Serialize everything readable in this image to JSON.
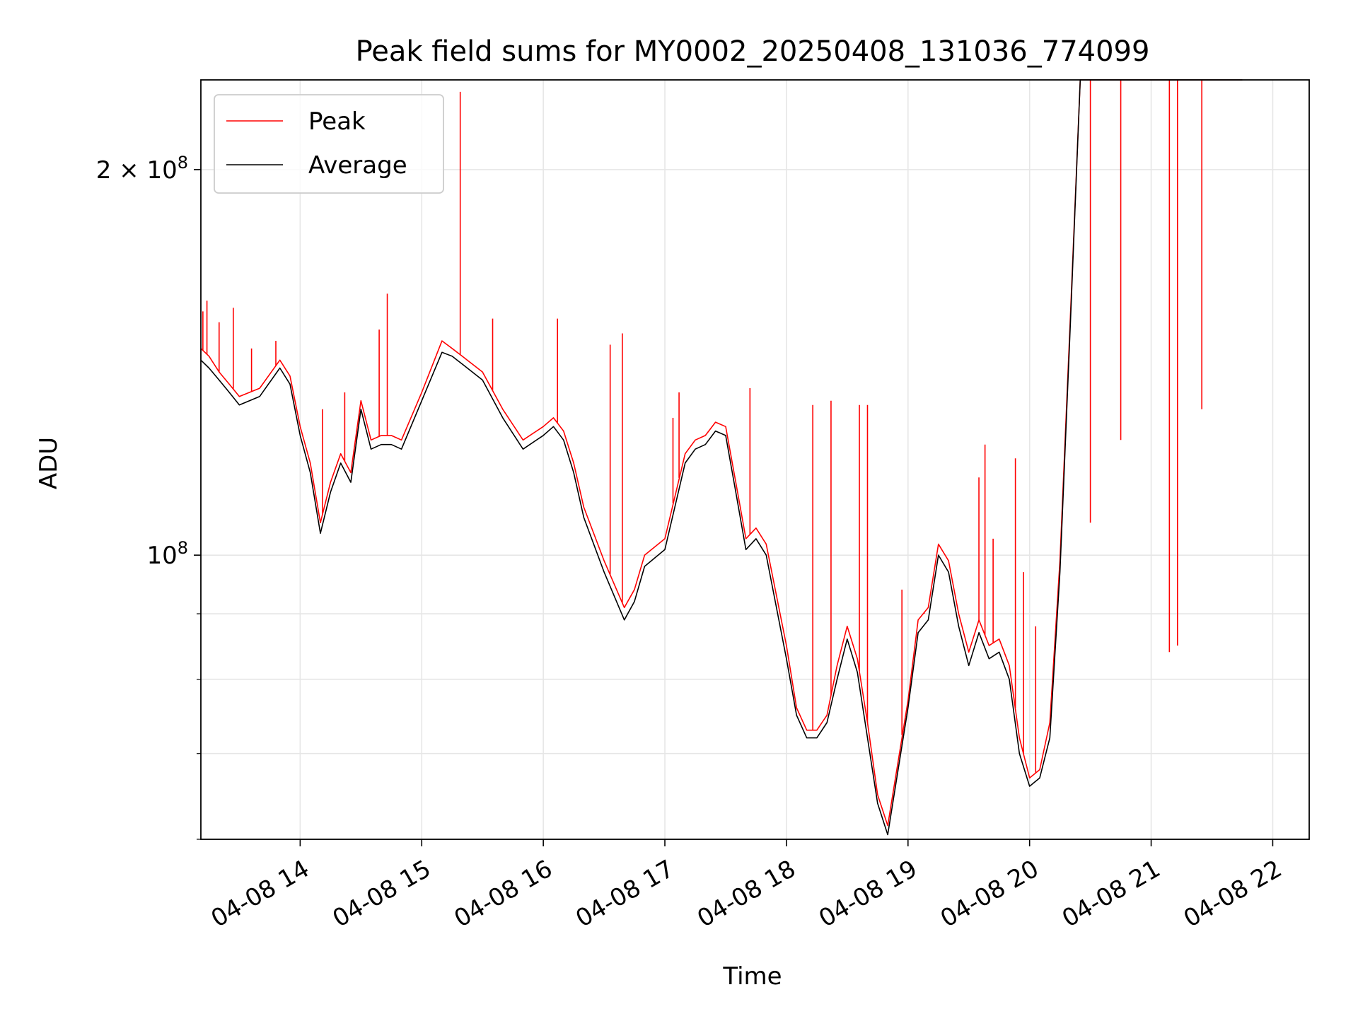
{
  "chart_data": {
    "type": "line",
    "title": "Peak field sums for MY0002_20250408_131036_774099",
    "xlabel": "Time",
    "ylabel": "ADU",
    "y_scale": "log",
    "ylim": [
      60000000,
      235000000
    ],
    "xlim": [
      "2025-04-08 13:11",
      "2025-04-08 22:18"
    ],
    "grid": true,
    "legend_position": "top-left",
    "x_ticks": [
      {
        "x": "2025-04-08 14:00",
        "label": "04-08 14"
      },
      {
        "x": "2025-04-08 15:00",
        "label": "04-08 15"
      },
      {
        "x": "2025-04-08 16:00",
        "label": "04-08 16"
      },
      {
        "x": "2025-04-08 17:00",
        "label": "04-08 17"
      },
      {
        "x": "2025-04-08 18:00",
        "label": "04-08 18"
      },
      {
        "x": "2025-04-08 19:00",
        "label": "04-08 19"
      },
      {
        "x": "2025-04-08 20:00",
        "label": "04-08 20"
      },
      {
        "x": "2025-04-08 21:00",
        "label": "04-08 21"
      },
      {
        "x": "2025-04-08 22:00",
        "label": "04-08 22"
      }
    ],
    "y_major_ticks": [
      {
        "y": 100000000,
        "label_base": "10",
        "label_exp": "8",
        "label_mult": ""
      },
      {
        "y": 200000000,
        "label_base": "10",
        "label_exp": "8",
        "label_mult": "2 × "
      }
    ],
    "y_minor_ticks": [
      60000000,
      70000000,
      80000000,
      90000000
    ],
    "x_date_start": "2025-04-08",
    "series": [
      {
        "name": "Average",
        "color": "#000000",
        "x": [
          "13:11",
          "13:15",
          "13:20",
          "13:25",
          "13:30",
          "13:40",
          "13:50",
          "13:55",
          "14:00",
          "14:05",
          "14:10",
          "14:15",
          "14:20",
          "14:25",
          "14:30",
          "14:35",
          "14:40",
          "14:45",
          "14:50",
          "15:00",
          "15:10",
          "15:15",
          "15:20",
          "15:30",
          "15:40",
          "15:50",
          "16:00",
          "16:05",
          "16:10",
          "16:15",
          "16:20",
          "16:30",
          "16:40",
          "16:45",
          "16:50",
          "17:00",
          "17:10",
          "17:15",
          "17:20",
          "17:25",
          "17:30",
          "17:35",
          "17:40",
          "17:45",
          "17:50",
          "18:00",
          "18:05",
          "18:10",
          "18:15",
          "18:20",
          "18:25",
          "18:30",
          "18:35",
          "18:40",
          "18:45",
          "18:50",
          "19:00",
          "19:05",
          "19:10",
          "19:15",
          "19:20",
          "19:25",
          "19:30",
          "19:35",
          "19:40",
          "19:45",
          "19:50",
          "19:55",
          "20:00",
          "20:05",
          "20:10",
          "20:15",
          "20:20",
          "20:25",
          "20:30",
          "20:35",
          "20:40",
          "20:45",
          "20:50",
          "20:55",
          "21:00",
          "21:05",
          "21:10",
          "21:15",
          "21:20",
          "21:25",
          "21:30",
          "21:35",
          "21:40",
          "21:45"
        ],
        "y": [
          142000000,
          140000000,
          137000000,
          134000000,
          131000000,
          133000000,
          140000000,
          136000000,
          124000000,
          116000000,
          104000000,
          112000000,
          118000000,
          114000000,
          130000000,
          121000000,
          122000000,
          122000000,
          121000000,
          132000000,
          144000000,
          143000000,
          141000000,
          137000000,
          128000000,
          121000000,
          124000000,
          126000000,
          123000000,
          116000000,
          107000000,
          97000000,
          89000000,
          92000000,
          98000000,
          101000000,
          118000000,
          121000000,
          122000000,
          125000000,
          124000000,
          112000000,
          101000000,
          103000000,
          100000000,
          83000000,
          75000000,
          72000000,
          72000000,
          74000000,
          80000000,
          86000000,
          81000000,
          72000000,
          64000000,
          60500000,
          76000000,
          87000000,
          89000000,
          100000000,
          97000000,
          88000000,
          82000000,
          87000000,
          83000000,
          84000000,
          80000000,
          70000000,
          66000000,
          67000000,
          72000000,
          97000000,
          150000000,
          235000000,
          235000000,
          235000000,
          235000000,
          235000000,
          235000000,
          235000000,
          235000000,
          235000000,
          235000000,
          235000000,
          235000000,
          235000000,
          235000000,
          235000000,
          235000000,
          235000000
        ]
      },
      {
        "name": "Peak",
        "color": "#ff0000",
        "x": [
          "13:11",
          "13:15",
          "13:20",
          "13:25",
          "13:30",
          "13:40",
          "13:50",
          "13:55",
          "14:00",
          "14:05",
          "14:10",
          "14:15",
          "14:20",
          "14:25",
          "14:30",
          "14:35",
          "14:40",
          "14:45",
          "14:50",
          "15:00",
          "15:10",
          "15:15",
          "15:20",
          "15:30",
          "15:40",
          "15:50",
          "16:00",
          "16:05",
          "16:10",
          "16:15",
          "16:20",
          "16:30",
          "16:40",
          "16:45",
          "16:50",
          "17:00",
          "17:10",
          "17:15",
          "17:20",
          "17:25",
          "17:30",
          "17:35",
          "17:40",
          "17:45",
          "17:50",
          "18:00",
          "18:05",
          "18:10",
          "18:15",
          "18:20",
          "18:25",
          "18:30",
          "18:35",
          "18:40",
          "18:45",
          "18:50",
          "19:00",
          "19:05",
          "19:10",
          "19:15",
          "19:20",
          "19:25",
          "19:30",
          "19:35",
          "19:40",
          "19:45",
          "19:50",
          "19:55",
          "20:00",
          "20:05",
          "20:10",
          "20:15",
          "20:20",
          "20:25",
          "20:30",
          "20:35",
          "20:40",
          "20:45",
          "20:50",
          "20:55",
          "21:00",
          "21:05",
          "21:10",
          "21:15",
          "21:20",
          "21:25",
          "21:30",
          "21:35",
          "21:40",
          "21:45"
        ],
        "y": [
          145000000,
          143000000,
          139000000,
          136000000,
          133000000,
          135000000,
          142000000,
          138000000,
          126000000,
          118000000,
          106000000,
          114000000,
          120000000,
          116000000,
          132000000,
          123000000,
          124000000,
          124000000,
          123000000,
          134000000,
          147000000,
          145000000,
          143000000,
          139000000,
          130000000,
          123000000,
          126000000,
          128000000,
          125000000,
          118000000,
          109000000,
          99000000,
          91000000,
          94000000,
          100000000,
          103000000,
          120000000,
          123000000,
          124000000,
          127000000,
          126000000,
          114000000,
          103000000,
          105000000,
          102000000,
          85000000,
          76000000,
          73000000,
          73000000,
          75000000,
          82000000,
          88000000,
          83000000,
          74000000,
          65000000,
          61500000,
          77000000,
          89000000,
          91000000,
          102000000,
          99000000,
          90000000,
          84000000,
          89000000,
          85000000,
          86000000,
          82000000,
          72000000,
          67000000,
          68000000,
          74000000,
          99000000,
          152000000,
          235000000,
          235000000,
          235000000,
          235000000,
          235000000,
          235000000,
          235000000,
          235000000,
          235000000,
          235000000,
          235000000,
          235000000,
          235000000,
          235000000,
          235000000,
          235000000,
          235000000
        ],
        "spikes": [
          {
            "x": "13:12",
            "y": 155000000
          },
          {
            "x": "13:14",
            "y": 158000000
          },
          {
            "x": "13:20",
            "y": 152000000
          },
          {
            "x": "13:27",
            "y": 156000000
          },
          {
            "x": "13:36",
            "y": 145000000
          },
          {
            "x": "13:48",
            "y": 147000000
          },
          {
            "x": "14:11",
            "y": 130000000
          },
          {
            "x": "14:22",
            "y": 134000000
          },
          {
            "x": "14:39",
            "y": 150000000
          },
          {
            "x": "14:43",
            "y": 160000000
          },
          {
            "x": "15:19",
            "y": 230000000
          },
          {
            "x": "15:35",
            "y": 153000000
          },
          {
            "x": "16:07",
            "y": 153000000
          },
          {
            "x": "16:33",
            "y": 146000000
          },
          {
            "x": "16:39",
            "y": 149000000
          },
          {
            "x": "17:04",
            "y": 128000000
          },
          {
            "x": "17:07",
            "y": 134000000
          },
          {
            "x": "17:42",
            "y": 135000000
          },
          {
            "x": "18:13",
            "y": 131000000
          },
          {
            "x": "18:22",
            "y": 132000000
          },
          {
            "x": "18:36",
            "y": 131000000
          },
          {
            "x": "18:40",
            "y": 131000000
          },
          {
            "x": "18:57",
            "y": 94000000
          },
          {
            "x": "19:08",
            "y": 90000000
          },
          {
            "x": "19:35",
            "y": 115000000
          },
          {
            "x": "19:38",
            "y": 122000000
          },
          {
            "x": "19:42",
            "y": 103000000
          },
          {
            "x": "19:53",
            "y": 119000000
          },
          {
            "x": "19:57",
            "y": 97000000
          },
          {
            "x": "20:03",
            "y": 88000000
          },
          {
            "x": "20:30",
            "y": 106000000
          },
          {
            "x": "20:45",
            "y": 123000000
          },
          {
            "x": "21:09",
            "y": 84000000
          },
          {
            "x": "21:13",
            "y": 85000000
          },
          {
            "x": "21:25",
            "y": 130000000
          }
        ]
      }
    ]
  }
}
